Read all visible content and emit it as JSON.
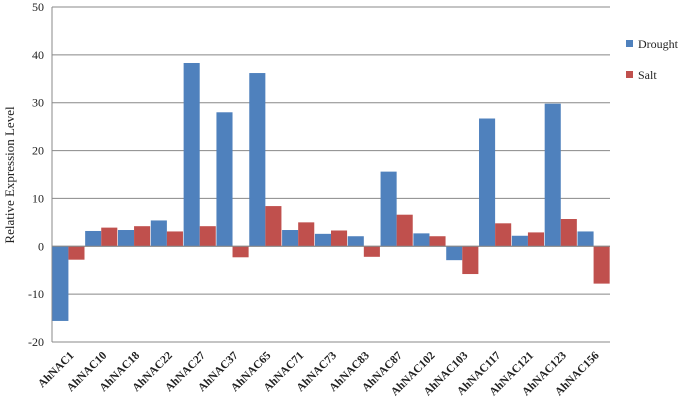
{
  "chart_data": {
    "type": "bar",
    "y_label": "Relative Expression Level",
    "categories": [
      "AhNAC1",
      "AhNAC10",
      "AhNAC18",
      "AhNAC22",
      "AhNAC27",
      "AhNAC37",
      "AhNAC65",
      "AhNAC71",
      "AhNAC73",
      "AhNAC83",
      "AhNAC87",
      "AhNAC102",
      "AhNAC103",
      "AhNAC117",
      "AhNAC121",
      "AhNAC123",
      "AhNAC156"
    ],
    "series": [
      {
        "name": "Drought",
        "color": "#4f81bd",
        "values": [
          -15.6,
          3.2,
          3.4,
          5.4,
          38.3,
          28,
          36.2,
          3.4,
          2.6,
          2.1,
          15.6,
          2.7,
          -2.9,
          26.7,
          2.2,
          29.8,
          3.1
        ]
      },
      {
        "name": "Salt",
        "color": "#c0504d",
        "values": [
          -2.8,
          3.9,
          4.2,
          3.1,
          4.2,
          -2.3,
          8.4,
          5.0,
          3.3,
          -2.2,
          6.6,
          2.1,
          -5.8,
          4.8,
          2.9,
          5.7,
          -7.8
        ]
      }
    ],
    "ylim": [
      -20,
      50
    ],
    "yticks": [
      -20,
      -10,
      0,
      10,
      20,
      30,
      40,
      50
    ],
    "grid": true,
    "legend": "right"
  }
}
